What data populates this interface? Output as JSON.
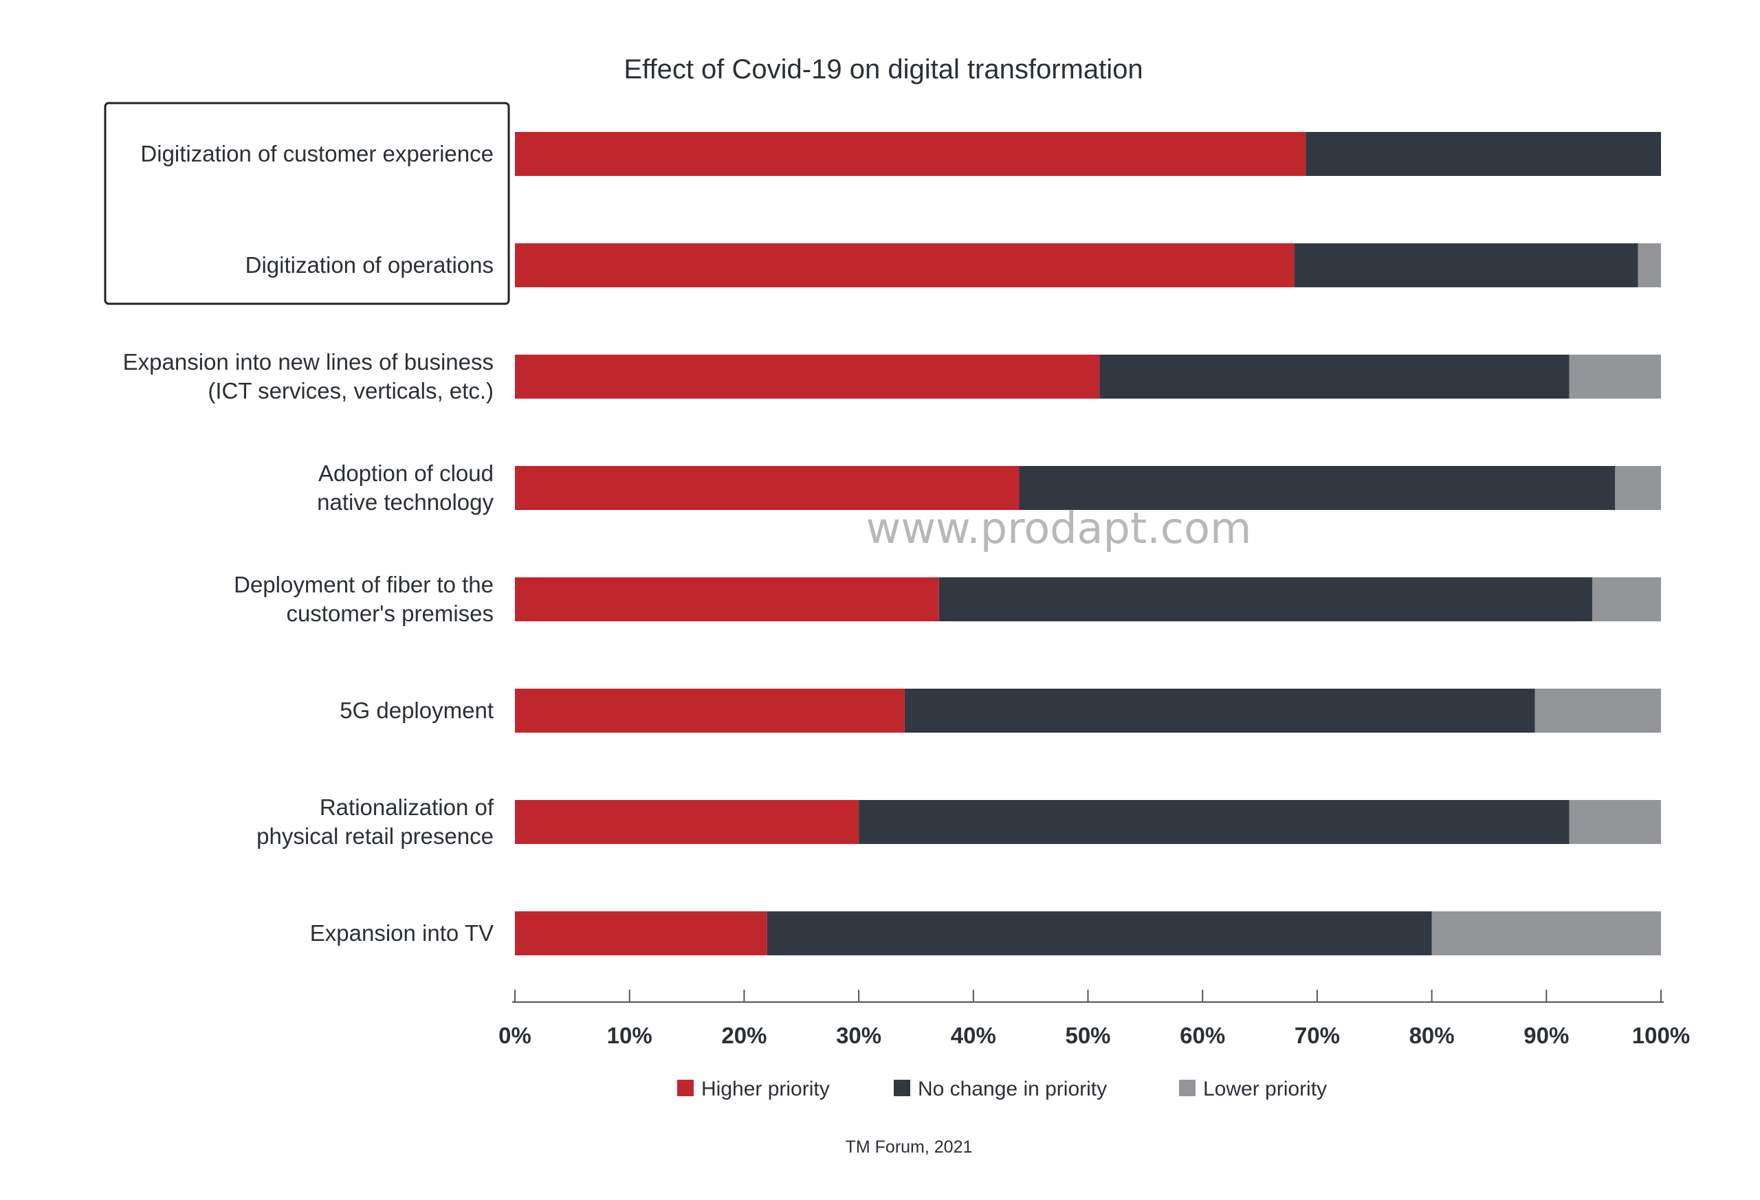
{
  "watermark": "www.prodapt.com",
  "source": "TM Forum, 2021",
  "colors": {
    "higher": "#c0272d",
    "no_change": "#323842",
    "lower": "#939598",
    "text": "#2b2f36",
    "axis": "#555555",
    "highlight_box": "#222222"
  },
  "chart_data": {
    "type": "bar",
    "orientation": "horizontal",
    "stacked": true,
    "title": "Effect of Covid-19 on digital transformation",
    "xlabel": "",
    "ylabel": "",
    "xlim": [
      0,
      100
    ],
    "x_ticks": [
      "0%",
      "10%",
      "20%",
      "30%",
      "40%",
      "50%",
      "60%",
      "70%",
      "80%",
      "90%",
      "100%"
    ],
    "grid": false,
    "legend_position": "bottom",
    "categories": [
      [
        "Digitization of customer experience"
      ],
      [
        "Digitization of operations"
      ],
      [
        "Expansion into new lines of business",
        "(ICT services, verticals, etc.)"
      ],
      [
        "Adoption of cloud",
        "native technology"
      ],
      [
        "Deployment of fiber to the",
        "customer's premises"
      ],
      [
        "5G deployment"
      ],
      [
        "Rationalization of",
        "physical retail presence"
      ],
      [
        "Expansion into TV"
      ]
    ],
    "highlighted_categories": [
      0,
      1
    ],
    "series": [
      {
        "name": "Higher priority",
        "color": "#c0272d",
        "values": [
          69,
          68,
          51,
          44,
          37,
          34,
          30,
          22
        ]
      },
      {
        "name": "No change in priority",
        "color": "#323842",
        "values": [
          31,
          30,
          41,
          52,
          57,
          55,
          62,
          58
        ]
      },
      {
        "name": "Lower priority",
        "color": "#939598",
        "values": [
          0,
          2,
          8,
          4,
          6,
          11,
          8,
          20
        ]
      }
    ]
  }
}
